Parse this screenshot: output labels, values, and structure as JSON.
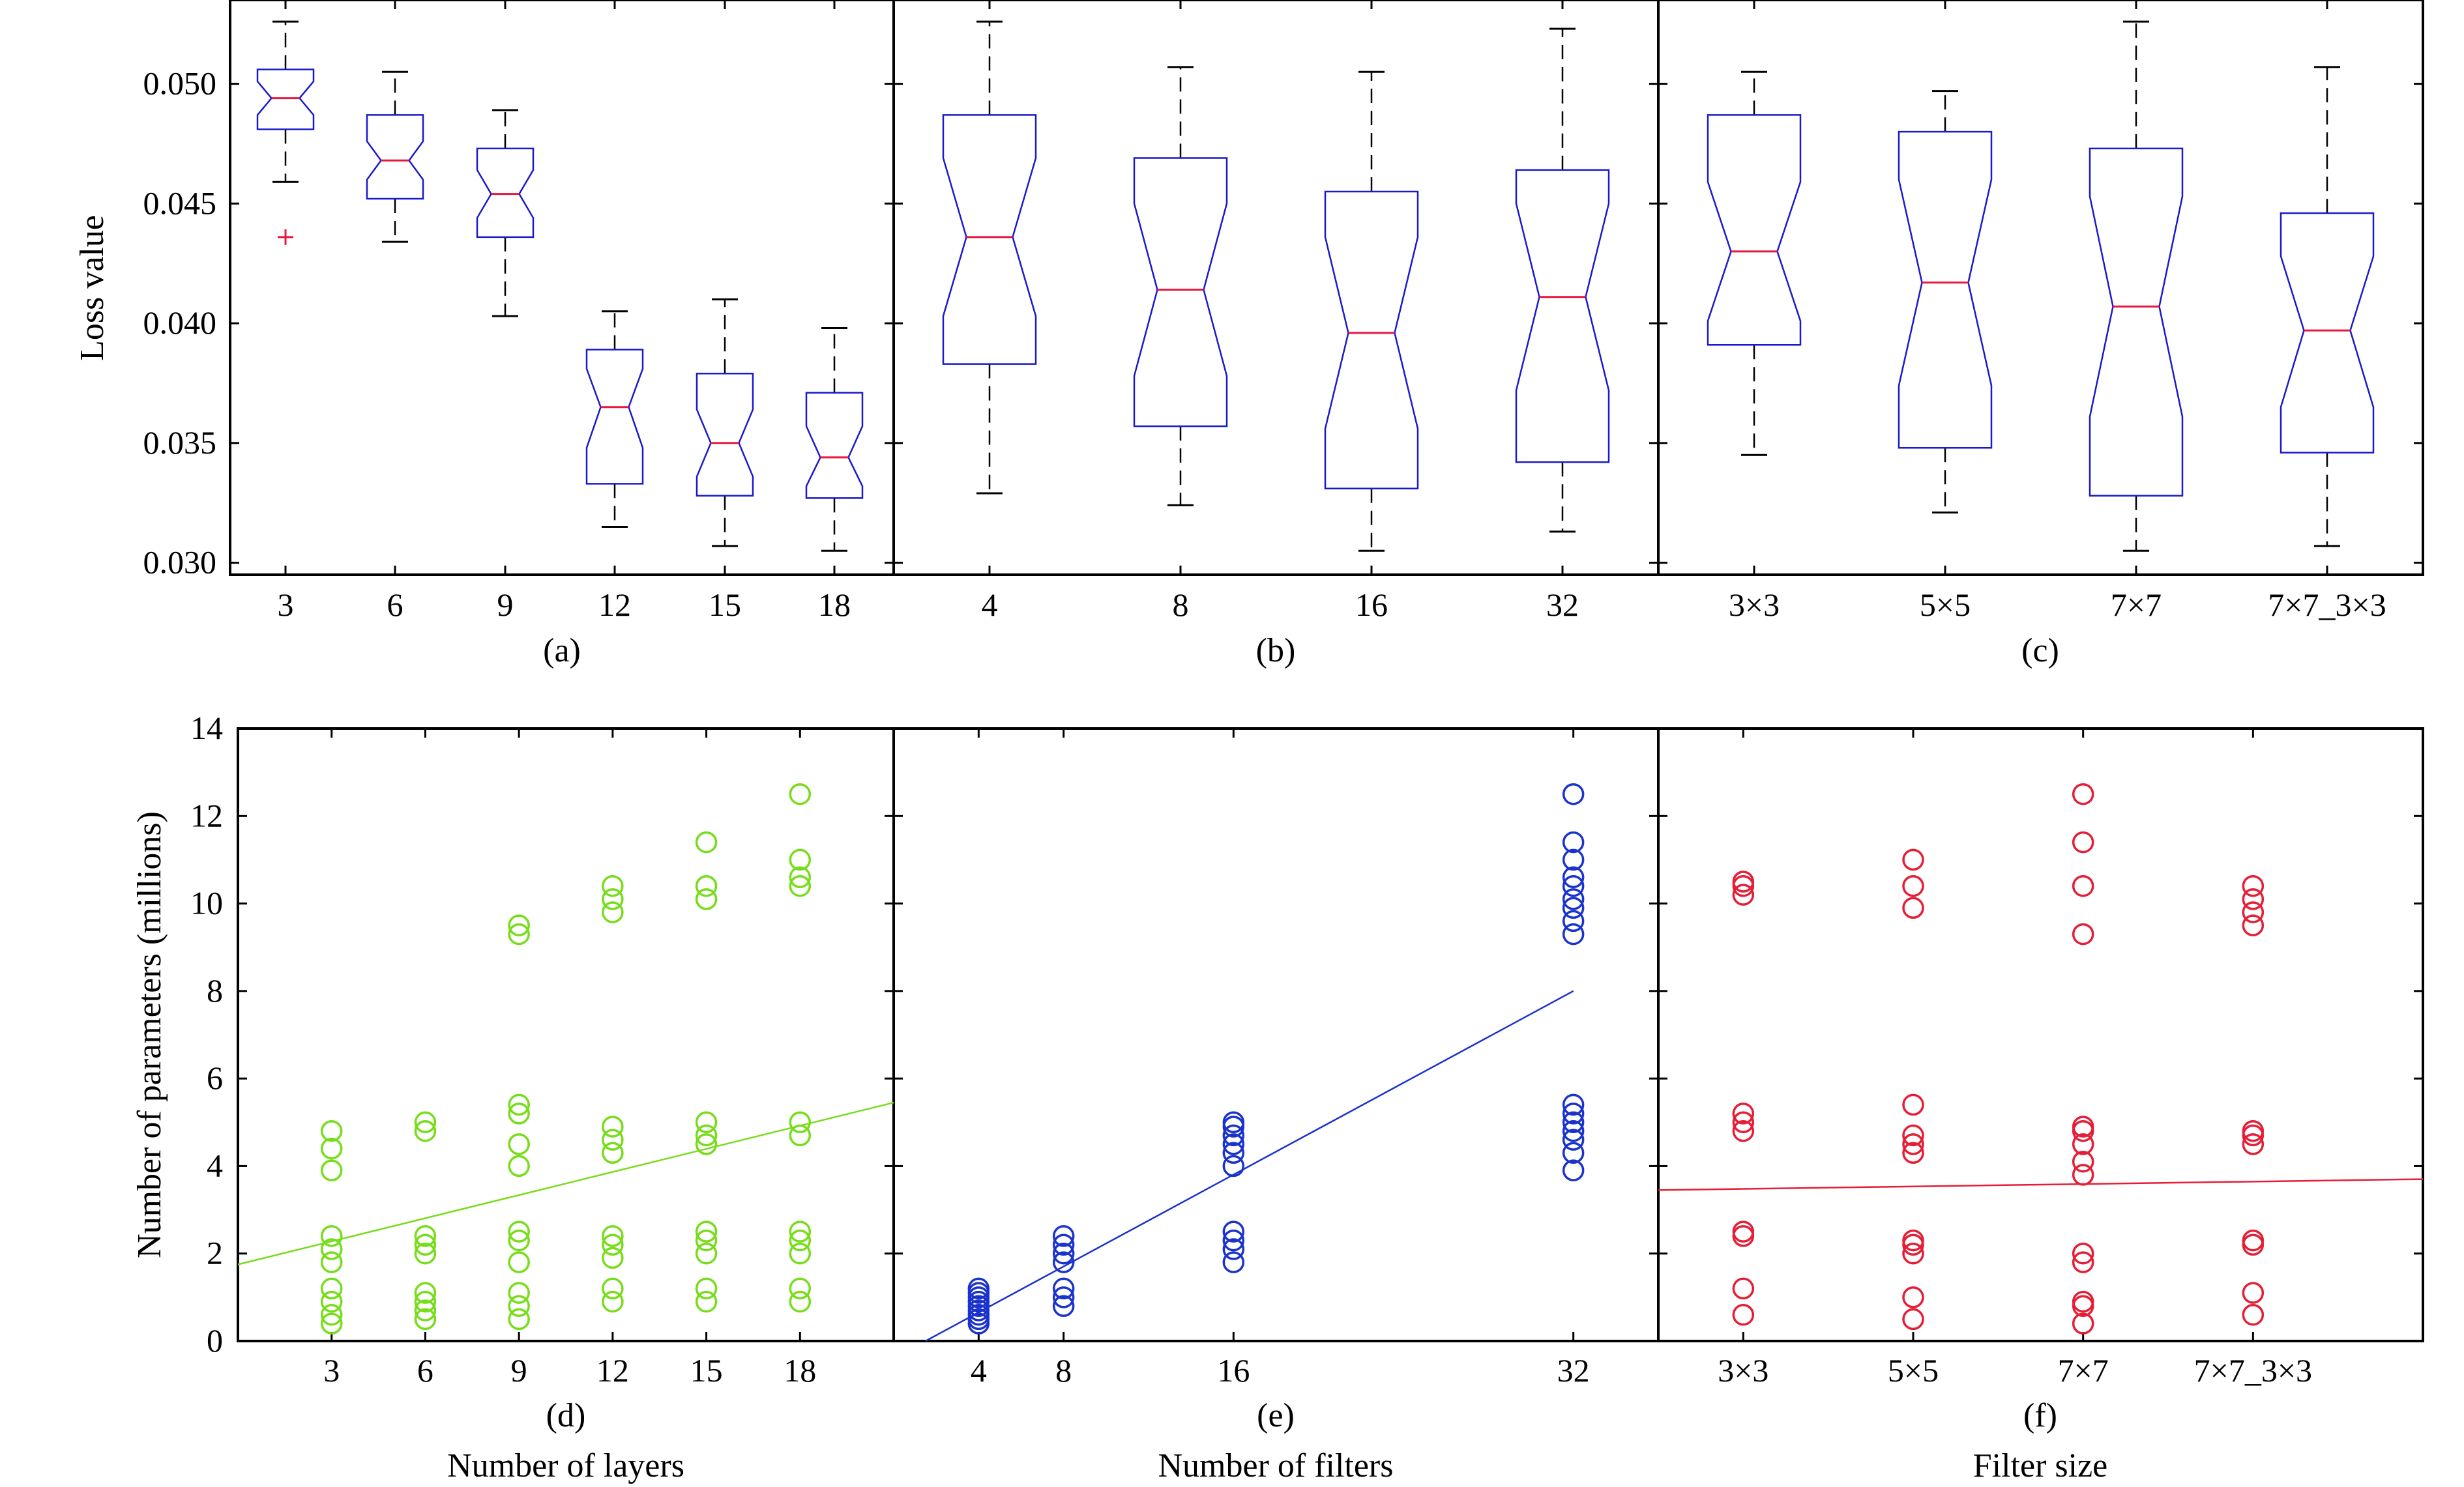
{
  "colors": {
    "axis": "#000000",
    "box": "#1a1acc",
    "median": "#e8173c",
    "whisker": "#000000",
    "outlier": "#e8173c",
    "green": "#77dd1a",
    "blue": "#1a33cc",
    "red": "#e51e36"
  },
  "chart_data": [
    {
      "type": "boxplot",
      "panel_label": "(a)",
      "ylabel": "Loss value",
      "xlabel": "",
      "ylim": [
        0.0295,
        0.0535
      ],
      "yticks": [
        0.03,
        0.035,
        0.04,
        0.045,
        0.05
      ],
      "ytick_labels": [
        "0.030",
        "0.035",
        "0.040",
        "0.045",
        "0.050"
      ],
      "categories": [
        "3",
        "6",
        "9",
        "12",
        "15",
        "18"
      ],
      "boxes": [
        {
          "whisker_low": 0.0459,
          "q1": 0.0481,
          "median": 0.0494,
          "q3": 0.0506,
          "whisker_high": 0.0526,
          "notch_low": 0.0487,
          "notch_high": 0.0501,
          "outliers": [
            0.0436
          ]
        },
        {
          "whisker_low": 0.0434,
          "q1": 0.0452,
          "median": 0.0468,
          "q3": 0.0487,
          "whisker_high": 0.0505,
          "notch_low": 0.046,
          "notch_high": 0.0476,
          "outliers": []
        },
        {
          "whisker_low": 0.0403,
          "q1": 0.0436,
          "median": 0.0454,
          "q3": 0.0473,
          "whisker_high": 0.0489,
          "notch_low": 0.0444,
          "notch_high": 0.0464,
          "outliers": []
        },
        {
          "whisker_low": 0.0315,
          "q1": 0.0333,
          "median": 0.0365,
          "q3": 0.0389,
          "whisker_high": 0.0405,
          "notch_low": 0.0348,
          "notch_high": 0.0381,
          "outliers": []
        },
        {
          "whisker_low": 0.0307,
          "q1": 0.0328,
          "median": 0.035,
          "q3": 0.0379,
          "whisker_high": 0.041,
          "notch_low": 0.0336,
          "notch_high": 0.0364,
          "outliers": []
        },
        {
          "whisker_low": 0.0305,
          "q1": 0.0327,
          "median": 0.0344,
          "q3": 0.0371,
          "whisker_high": 0.0398,
          "notch_low": 0.0332,
          "notch_high": 0.0357,
          "outliers": []
        }
      ]
    },
    {
      "type": "boxplot",
      "panel_label": "(b)",
      "ylim": [
        0.0295,
        0.0535
      ],
      "categories": [
        "4",
        "8",
        "16",
        "32"
      ],
      "boxes": [
        {
          "whisker_low": 0.0329,
          "q1": 0.0383,
          "median": 0.0436,
          "q3": 0.0487,
          "whisker_high": 0.0526,
          "notch_low": 0.0403,
          "notch_high": 0.0469,
          "outliers": []
        },
        {
          "whisker_low": 0.0324,
          "q1": 0.0357,
          "median": 0.0414,
          "q3": 0.0469,
          "whisker_high": 0.0507,
          "notch_low": 0.0378,
          "notch_high": 0.045,
          "outliers": []
        },
        {
          "whisker_low": 0.0305,
          "q1": 0.0331,
          "median": 0.0396,
          "q3": 0.0455,
          "whisker_high": 0.0505,
          "notch_low": 0.0356,
          "notch_high": 0.0436,
          "outliers": []
        },
        {
          "whisker_low": 0.0313,
          "q1": 0.0342,
          "median": 0.0411,
          "q3": 0.0464,
          "whisker_high": 0.0523,
          "notch_low": 0.0372,
          "notch_high": 0.045,
          "outliers": []
        }
      ]
    },
    {
      "type": "boxplot",
      "panel_label": "(c)",
      "ylim": [
        0.0295,
        0.0535
      ],
      "categories": [
        "3×3",
        "5×5",
        "7×7",
        "7×7_3×3"
      ],
      "boxes": [
        {
          "whisker_low": 0.0345,
          "q1": 0.0391,
          "median": 0.043,
          "q3": 0.0487,
          "whisker_high": 0.0505,
          "notch_low": 0.0401,
          "notch_high": 0.0459,
          "outliers": []
        },
        {
          "whisker_low": 0.0321,
          "q1": 0.0348,
          "median": 0.0417,
          "q3": 0.048,
          "whisker_high": 0.0497,
          "notch_low": 0.0374,
          "notch_high": 0.046,
          "outliers": []
        },
        {
          "whisker_low": 0.0305,
          "q1": 0.0328,
          "median": 0.0407,
          "q3": 0.0473,
          "whisker_high": 0.0526,
          "notch_low": 0.0361,
          "notch_high": 0.0453,
          "outliers": []
        },
        {
          "whisker_low": 0.0307,
          "q1": 0.0346,
          "median": 0.0397,
          "q3": 0.0446,
          "whisker_high": 0.0507,
          "notch_low": 0.0365,
          "notch_high": 0.0428,
          "outliers": []
        }
      ]
    },
    {
      "type": "scatter",
      "panel_label": "(d)",
      "xlabel": "Number of layers",
      "ylabel": "Number of parameters (millions)",
      "ylim": [
        0,
        14
      ],
      "yticks": [
        0,
        2,
        4,
        6,
        8,
        10,
        12,
        14
      ],
      "xlim": [
        0,
        21
      ],
      "xticks": [
        3,
        6,
        9,
        12,
        15,
        18
      ],
      "xtick_labels": [
        "3",
        "6",
        "9",
        "12",
        "15",
        "18"
      ],
      "color": "green",
      "points": [
        [
          3,
          0.4
        ],
        [
          3,
          0.6
        ],
        [
          3,
          0.9
        ],
        [
          3,
          1.2
        ],
        [
          3,
          1.8
        ],
        [
          3,
          2.1
        ],
        [
          3,
          2.4
        ],
        [
          3,
          3.9
        ],
        [
          3,
          4.4
        ],
        [
          3,
          4.8
        ],
        [
          6,
          0.5
        ],
        [
          6,
          0.7
        ],
        [
          6,
          0.9
        ],
        [
          6,
          1.1
        ],
        [
          6,
          2.0
        ],
        [
          6,
          2.2
        ],
        [
          6,
          2.4
        ],
        [
          6,
          4.8
        ],
        [
          6,
          5.0
        ],
        [
          9,
          0.5
        ],
        [
          9,
          0.8
        ],
        [
          9,
          1.1
        ],
        [
          9,
          1.8
        ],
        [
          9,
          2.3
        ],
        [
          9,
          2.5
        ],
        [
          9,
          4.0
        ],
        [
          9,
          4.5
        ],
        [
          9,
          5.2
        ],
        [
          9,
          5.4
        ],
        [
          9,
          9.3
        ],
        [
          9,
          9.5
        ],
        [
          12,
          0.9
        ],
        [
          12,
          1.2
        ],
        [
          12,
          1.9
        ],
        [
          12,
          2.2
        ],
        [
          12,
          2.4
        ],
        [
          12,
          4.3
        ],
        [
          12,
          4.6
        ],
        [
          12,
          4.9
        ],
        [
          12,
          9.8
        ],
        [
          12,
          10.1
        ],
        [
          12,
          10.4
        ],
        [
          15,
          0.9
        ],
        [
          15,
          1.2
        ],
        [
          15,
          2.0
        ],
        [
          15,
          2.3
        ],
        [
          15,
          2.5
        ],
        [
          15,
          4.5
        ],
        [
          15,
          4.7
        ],
        [
          15,
          5.0
        ],
        [
          15,
          10.1
        ],
        [
          15,
          10.4
        ],
        [
          15,
          11.4
        ],
        [
          18,
          0.9
        ],
        [
          18,
          1.2
        ],
        [
          18,
          2.0
        ],
        [
          18,
          2.3
        ],
        [
          18,
          2.5
        ],
        [
          18,
          4.7
        ],
        [
          18,
          5.0
        ],
        [
          18,
          10.4
        ],
        [
          18,
          10.6
        ],
        [
          18,
          11.0
        ],
        [
          18,
          12.5
        ]
      ],
      "fit": {
        "x": [
          0,
          21
        ],
        "y": [
          1.75,
          5.45
        ]
      }
    },
    {
      "type": "scatter",
      "panel_label": "(e)",
      "xlabel": "Number of filters",
      "xlim": [
        0,
        36
      ],
      "xticks": [
        4,
        8,
        16,
        32
      ],
      "xtick_labels": [
        "4",
        "8",
        "16",
        "32"
      ],
      "color": "blue",
      "points": [
        [
          4,
          0.4
        ],
        [
          4,
          0.5
        ],
        [
          4,
          0.6
        ],
        [
          4,
          0.7
        ],
        [
          4,
          0.8
        ],
        [
          4,
          0.9
        ],
        [
          4,
          1.0
        ],
        [
          4,
          1.1
        ],
        [
          4,
          1.2
        ],
        [
          8,
          0.8
        ],
        [
          8,
          1.0
        ],
        [
          8,
          1.2
        ],
        [
          8,
          1.8
        ],
        [
          8,
          2.0
        ],
        [
          8,
          2.2
        ],
        [
          8,
          2.4
        ],
        [
          16,
          1.8
        ],
        [
          16,
          2.1
        ],
        [
          16,
          2.3
        ],
        [
          16,
          2.5
        ],
        [
          16,
          4.0
        ],
        [
          16,
          4.3
        ],
        [
          16,
          4.5
        ],
        [
          16,
          4.7
        ],
        [
          16,
          4.9
        ],
        [
          16,
          5.0
        ],
        [
          32,
          3.9
        ],
        [
          32,
          4.3
        ],
        [
          32,
          4.6
        ],
        [
          32,
          4.8
        ],
        [
          32,
          5.0
        ],
        [
          32,
          5.2
        ],
        [
          32,
          5.4
        ],
        [
          32,
          9.3
        ],
        [
          32,
          9.6
        ],
        [
          32,
          9.9
        ],
        [
          32,
          10.1
        ],
        [
          32,
          10.4
        ],
        [
          32,
          10.6
        ],
        [
          32,
          11.0
        ],
        [
          32,
          11.4
        ],
        [
          32,
          12.5
        ]
      ],
      "fit": {
        "x": [
          1.5,
          32
        ],
        "y": [
          0,
          8.0
        ]
      }
    },
    {
      "type": "scatter",
      "panel_label": "(f)",
      "xlabel": "Filter size",
      "xlim": [
        0.5,
        5
      ],
      "xticks": [
        1,
        2,
        3,
        4
      ],
      "xtick_labels": [
        "3×3",
        "5×5",
        "7×7",
        "7×7_3×3"
      ],
      "color": "red",
      "points": [
        [
          1,
          0.6
        ],
        [
          1,
          1.2
        ],
        [
          1,
          2.4
        ],
        [
          1,
          2.5
        ],
        [
          1,
          4.8
        ],
        [
          1,
          5.0
        ],
        [
          1,
          5.2
        ],
        [
          1,
          10.2
        ],
        [
          1,
          10.4
        ],
        [
          1,
          10.5
        ],
        [
          2,
          0.5
        ],
        [
          2,
          1.0
        ],
        [
          2,
          2.0
        ],
        [
          2,
          2.2
        ],
        [
          2,
          2.3
        ],
        [
          2,
          4.3
        ],
        [
          2,
          4.5
        ],
        [
          2,
          4.7
        ],
        [
          2,
          5.4
        ],
        [
          2,
          9.9
        ],
        [
          2,
          10.4
        ],
        [
          2,
          11.0
        ],
        [
          3,
          0.4
        ],
        [
          3,
          0.8
        ],
        [
          3,
          0.9
        ],
        [
          3,
          1.8
        ],
        [
          3,
          2.0
        ],
        [
          3,
          3.8
        ],
        [
          3,
          4.1
        ],
        [
          3,
          4.5
        ],
        [
          3,
          4.8
        ],
        [
          3,
          4.9
        ],
        [
          3,
          9.3
        ],
        [
          3,
          10.4
        ],
        [
          3,
          11.4
        ],
        [
          3,
          12.5
        ],
        [
          4,
          0.6
        ],
        [
          4,
          1.1
        ],
        [
          4,
          2.2
        ],
        [
          4,
          2.3
        ],
        [
          4,
          4.5
        ],
        [
          4,
          4.7
        ],
        [
          4,
          4.8
        ],
        [
          4,
          9.5
        ],
        [
          4,
          9.8
        ],
        [
          4,
          10.1
        ],
        [
          4,
          10.4
        ]
      ],
      "fit": {
        "x": [
          0.5,
          5
        ],
        "y": [
          3.45,
          3.7
        ]
      }
    }
  ]
}
